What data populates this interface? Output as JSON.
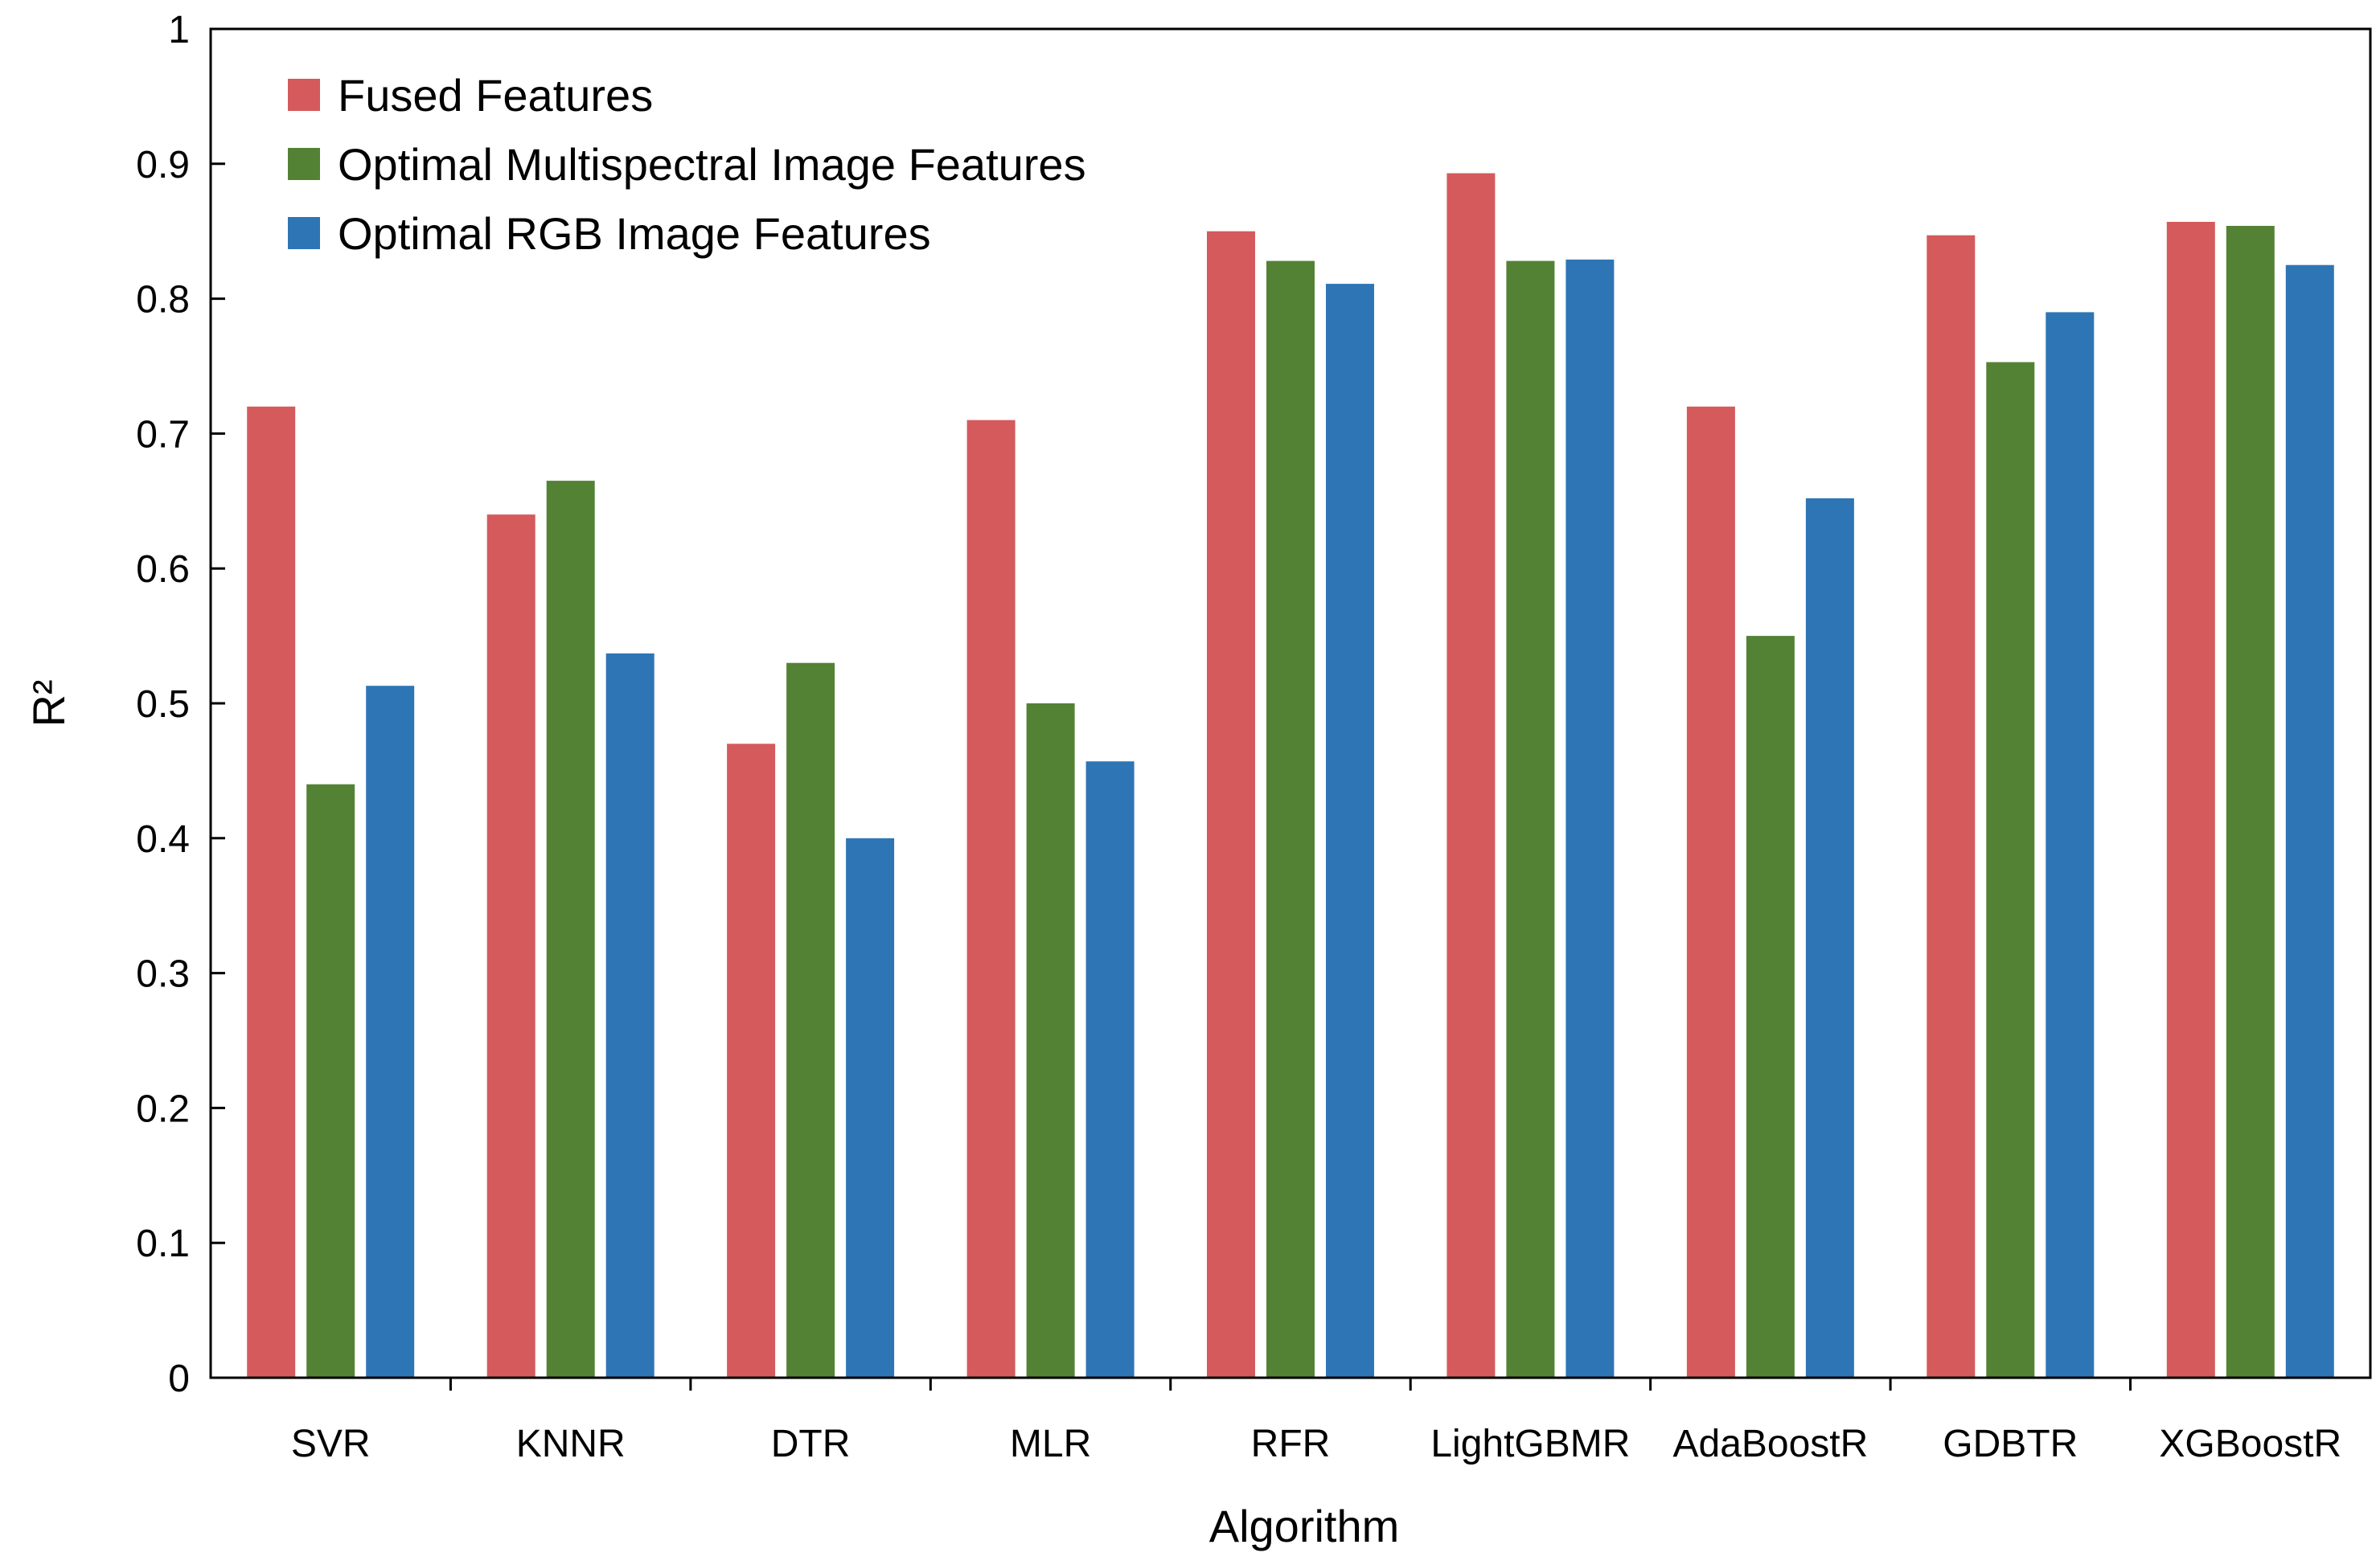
{
  "chart_data": {
    "type": "bar",
    "xlabel": "Algorithm",
    "ylabel": "R²",
    "ylim": [
      0,
      1
    ],
    "yticks": [
      "0",
      "0.1",
      "0.2",
      "0.3",
      "0.4",
      "0.5",
      "0.6",
      "0.7",
      "0.8",
      "0.9",
      "1"
    ],
    "grid": false,
    "legend_position": "top-left",
    "categories": [
      "SVR",
      "KNNR",
      "DTR",
      "MLR",
      "RFR",
      "LightGBMR",
      "AdaBoostR",
      "GDBTR",
      "XGBoostR"
    ],
    "series": [
      {
        "name": "Fused Features",
        "color": "#d55a5c",
        "values": [
          0.72,
          0.64,
          0.47,
          0.71,
          0.85,
          0.893,
          0.72,
          0.847,
          0.857
        ]
      },
      {
        "name": "Optimal Multispectral Image Features",
        "color": "#548235",
        "values": [
          0.44,
          0.665,
          0.53,
          0.5,
          0.828,
          0.828,
          0.55,
          0.753,
          0.854
        ]
      },
      {
        "name": "Optimal RGB Image Features",
        "color": "#2e75b6",
        "values": [
          0.513,
          0.537,
          0.4,
          0.457,
          0.811,
          0.829,
          0.652,
          0.79,
          0.825
        ]
      }
    ]
  }
}
